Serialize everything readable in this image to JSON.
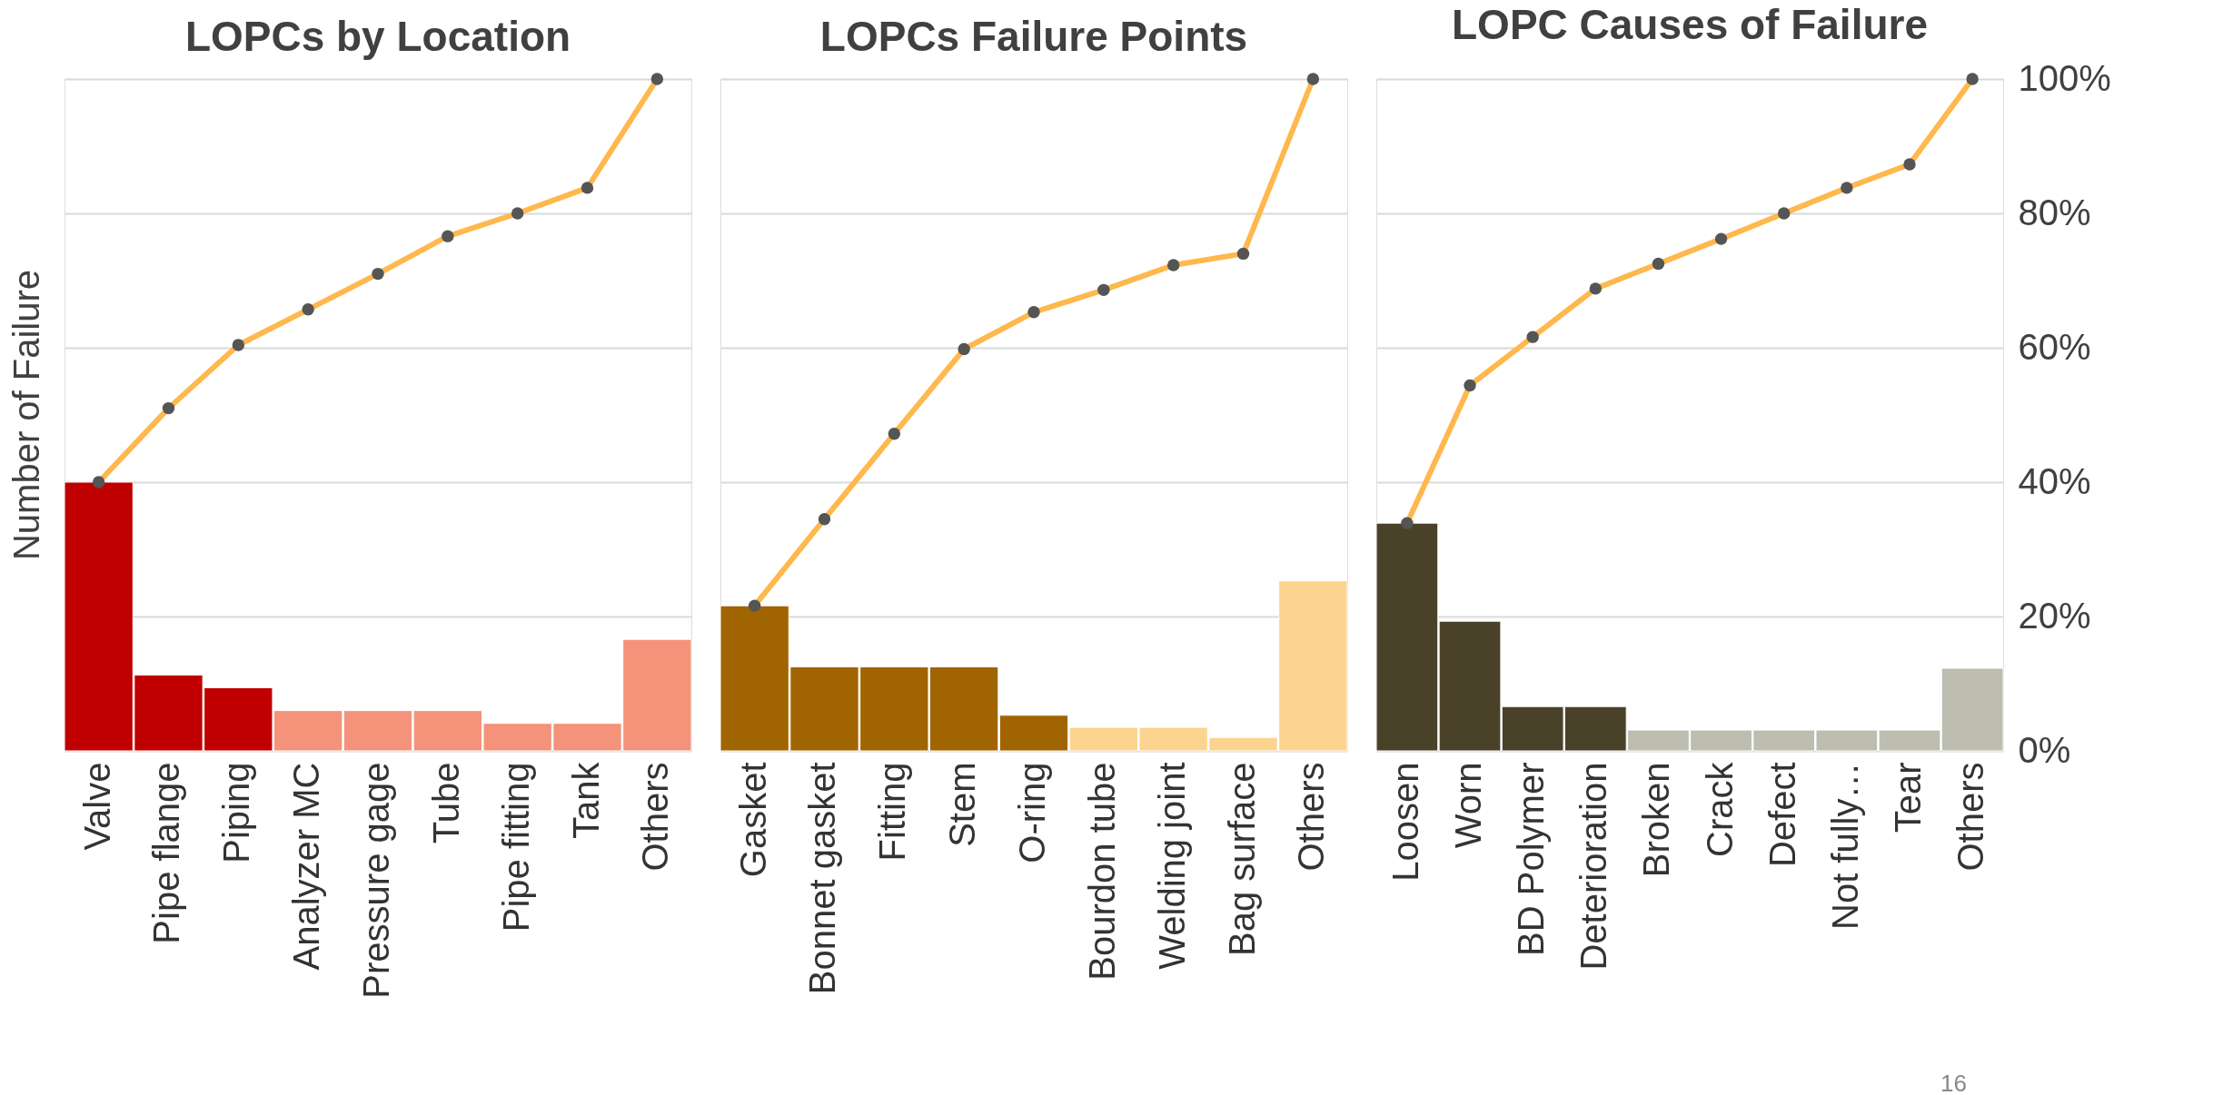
{
  "chart_data": [
    {
      "type": "bar",
      "title": "LOPCs by Location",
      "ylabel": "Number of Failure",
      "categories": [
        "Valve",
        "Pipe flange",
        "Piping",
        "Analyzer MC",
        "Pressure gage",
        "Tube",
        "Pipe fitting",
        "Tank",
        "Others"
      ],
      "series": [
        {
          "type": "bar",
          "values": [
            40,
            11.3,
            9.4,
            6,
            6,
            6,
            4.1,
            4.1,
            16.6
          ],
          "colors": [
            "#c00000",
            "#c00000",
            "#c00000",
            "#f4937a",
            "#f4937a",
            "#f4937a",
            "#f4937a",
            "#f4937a",
            "#f4937a"
          ]
        },
        {
          "type": "line",
          "color": "#ffb84d",
          "marker": "circle",
          "values": [
            40,
            51,
            60.4,
            65.7,
            71,
            76.6,
            80,
            83.8,
            100
          ]
        }
      ],
      "ylim": [
        0,
        100
      ],
      "yticks": [
        0,
        20,
        40,
        60,
        80,
        100
      ],
      "grid": "y",
      "tick_labels": "x"
    },
    {
      "type": "bar",
      "title": "LOPCs Failure Points",
      "categories": [
        "Gasket",
        "Bonnet gasket",
        "Fitting",
        "Stem",
        "O-ring",
        "Bourdon tube",
        "Welding joint",
        "Bag surface",
        "Others"
      ],
      "series": [
        {
          "type": "bar",
          "values": [
            21.6,
            12.5,
            12.5,
            12.5,
            5.3,
            3.5,
            3.5,
            2,
            25.3
          ],
          "colors": [
            "#a06400",
            "#a06400",
            "#a06400",
            "#a06400",
            "#a06400",
            "#fdd48f",
            "#fdd48f",
            "#fdd48f",
            "#fdd48f"
          ]
        },
        {
          "type": "line",
          "color": "#ffb84d",
          "marker": "circle",
          "values": [
            21.6,
            34.5,
            47.2,
            59.8,
            65.3,
            68.6,
            72.3,
            74,
            100
          ]
        }
      ],
      "ylim": [
        0,
        100
      ],
      "yticks": [
        0,
        20,
        40,
        60,
        80,
        100
      ],
      "grid": "y",
      "tick_labels": "x"
    },
    {
      "type": "bar",
      "title": "LOPC Causes of Failure",
      "annotations": [
        "16"
      ],
      "categories": [
        "Loosen",
        "Worn",
        "BD Polymer",
        "Deterioration",
        "Broken",
        "Crack",
        "Defect",
        "Not fully…",
        "Tear",
        "Others"
      ],
      "series": [
        {
          "type": "bar",
          "values": [
            33.9,
            19.3,
            6.6,
            6.6,
            3.1,
            3.1,
            3.1,
            3.1,
            3.1,
            12.3
          ],
          "colors": [
            "#4a4129",
            "#4a4129",
            "#4a4129",
            "#4a4129",
            "#bdbdb0",
            "#bdbdb0",
            "#bdbdb0",
            "#bdbdb0",
            "#bdbdb0",
            "#bdbdb0"
          ]
        },
        {
          "type": "line",
          "color": "#ffb84d",
          "marker": "circle",
          "values": [
            33.9,
            54.4,
            61.6,
            68.8,
            72.5,
            76.2,
            80,
            83.8,
            87.3,
            100
          ]
        }
      ],
      "ylim": [
        0,
        100
      ],
      "yticks": [
        {
          "value": 0,
          "label": "0%"
        },
        {
          "value": 20,
          "label": "20%"
        },
        {
          "value": 40,
          "label": "40%"
        },
        {
          "value": 60,
          "label": "60%"
        },
        {
          "value": 80,
          "label": "80%"
        },
        {
          "value": 100,
          "label": "100%"
        }
      ],
      "grid": "y"
    }
  ]
}
